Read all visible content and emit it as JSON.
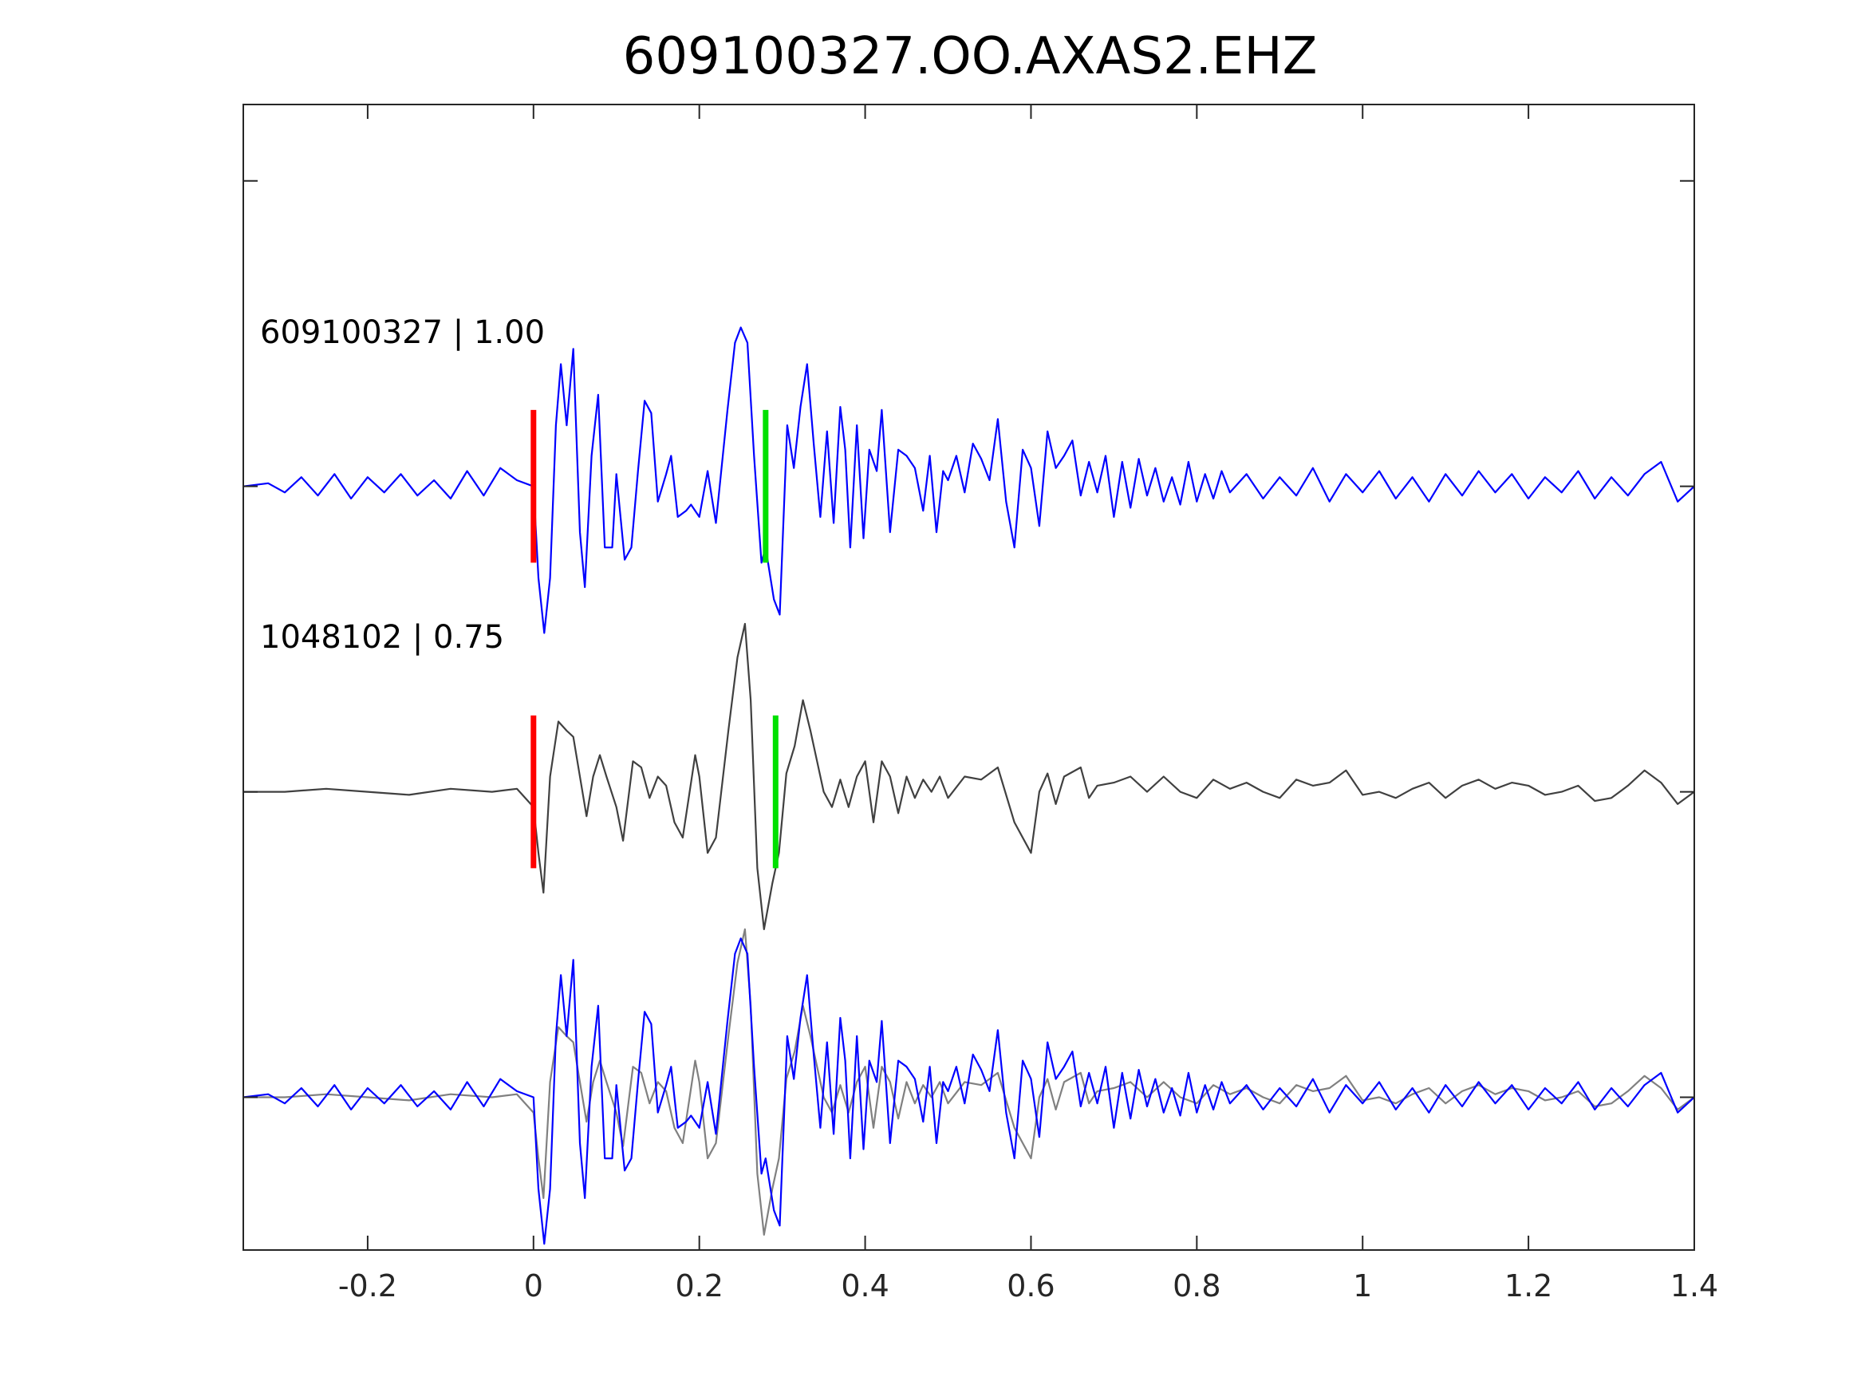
{
  "chart_data": {
    "type": "line",
    "title": "609100327.OO.AXAS2.EHZ",
    "xlabel": "",
    "ylabel": "",
    "xlim": [
      -0.35,
      1.4
    ],
    "xticks": [
      -0.2,
      0,
      0.2,
      0.4,
      0.6,
      0.8,
      1,
      1.2,
      1.4
    ],
    "xtick_labels": [
      "-0.2",
      "0",
      "0.2",
      "0.4",
      "0.6",
      "0.8",
      "1",
      "1.2",
      "1.4"
    ],
    "ylim": [
      -2.5,
      1.25
    ],
    "y_ticks_shown": [
      1,
      0,
      -1,
      -2
    ],
    "y_tick_labels_shown": false,
    "grid": false,
    "legend": "none",
    "traces": [
      {
        "label": "609100327 | 1.00",
        "color": "#0000ff",
        "offset": 0,
        "amplitude_scale": 1,
        "points": [
          [
            -0.35,
            0
          ],
          [
            -0.32,
            0.01
          ],
          [
            -0.3,
            -0.02
          ],
          [
            -0.28,
            0.03
          ],
          [
            -0.26,
            -0.03
          ],
          [
            -0.24,
            0.04
          ],
          [
            -0.22,
            -0.04
          ],
          [
            -0.2,
            0.03
          ],
          [
            -0.18,
            -0.02
          ],
          [
            -0.16,
            0.04
          ],
          [
            -0.14,
            -0.03
          ],
          [
            -0.12,
            0.02
          ],
          [
            -0.1,
            -0.04
          ],
          [
            -0.08,
            0.05
          ],
          [
            -0.06,
            -0.03
          ],
          [
            -0.04,
            0.06
          ],
          [
            -0.02,
            0.02
          ],
          [
            0,
            0
          ],
          [
            0.006,
            -0.3
          ],
          [
            0.013,
            -0.48
          ],
          [
            0.02,
            -0.3
          ],
          [
            0.027,
            0.2
          ],
          [
            0.033,
            0.4
          ],
          [
            0.04,
            0.2
          ],
          [
            0.048,
            0.45
          ],
          [
            0.056,
            -0.15
          ],
          [
            0.062,
            -0.33
          ],
          [
            0.07,
            0.1
          ],
          [
            0.078,
            0.3
          ],
          [
            0.086,
            -0.2
          ],
          [
            0.095,
            -0.2
          ],
          [
            0.1,
            0.04
          ],
          [
            0.11,
            -0.24
          ],
          [
            0.118,
            -0.2
          ],
          [
            0.126,
            0.05
          ],
          [
            0.134,
            0.28
          ],
          [
            0.142,
            0.24
          ],
          [
            0.15,
            -0.05
          ],
          [
            0.16,
            0.04
          ],
          [
            0.166,
            0.1
          ],
          [
            0.174,
            -0.1
          ],
          [
            0.184,
            -0.08
          ],
          [
            0.19,
            -0.06
          ],
          [
            0.2,
            -0.1
          ],
          [
            0.21,
            0.05
          ],
          [
            0.22,
            -0.12
          ],
          [
            0.234,
            0.25
          ],
          [
            0.243,
            0.47
          ],
          [
            0.25,
            0.52
          ],
          [
            0.258,
            0.47
          ],
          [
            0.266,
            0.1
          ],
          [
            0.275,
            -0.25
          ],
          [
            0.28,
            -0.2
          ],
          [
            0.29,
            -0.37
          ],
          [
            0.297,
            -0.42
          ],
          [
            0.306,
            0.2
          ],
          [
            0.314,
            0.06
          ],
          [
            0.322,
            0.26
          ],
          [
            0.33,
            0.4
          ],
          [
            0.338,
            0.14
          ],
          [
            0.346,
            -0.1
          ],
          [
            0.354,
            0.18
          ],
          [
            0.362,
            -0.12
          ],
          [
            0.37,
            0.26
          ],
          [
            0.376,
            0.12
          ],
          [
            0.382,
            -0.2
          ],
          [
            0.39,
            0.2
          ],
          [
            0.398,
            -0.17
          ],
          [
            0.405,
            0.12
          ],
          [
            0.414,
            0.05
          ],
          [
            0.42,
            0.25
          ],
          [
            0.43,
            -0.15
          ],
          [
            0.44,
            0.12
          ],
          [
            0.45,
            0.1
          ],
          [
            0.46,
            0.06
          ],
          [
            0.47,
            -0.08
          ],
          [
            0.478,
            0.1
          ],
          [
            0.486,
            -0.15
          ],
          [
            0.494,
            0.05
          ],
          [
            0.5,
            0.02
          ],
          [
            0.51,
            0.1
          ],
          [
            0.52,
            -0.02
          ],
          [
            0.53,
            0.14
          ],
          [
            0.54,
            0.09
          ],
          [
            0.55,
            0.02
          ],
          [
            0.56,
            0.22
          ],
          [
            0.57,
            -0.05
          ],
          [
            0.58,
            -0.2
          ],
          [
            0.59,
            0.12
          ],
          [
            0.6,
            0.06
          ],
          [
            0.61,
            -0.13
          ],
          [
            0.62,
            0.18
          ],
          [
            0.63,
            0.06
          ],
          [
            0.64,
            0.1
          ],
          [
            0.65,
            0.15
          ],
          [
            0.66,
            -0.03
          ],
          [
            0.67,
            0.08
          ],
          [
            0.68,
            -0.02
          ],
          [
            0.69,
            0.1
          ],
          [
            0.7,
            -0.1
          ],
          [
            0.71,
            0.08
          ],
          [
            0.72,
            -0.07
          ],
          [
            0.73,
            0.09
          ],
          [
            0.74,
            -0.03
          ],
          [
            0.75,
            0.06
          ],
          [
            0.76,
            -0.05
          ],
          [
            0.77,
            0.03
          ],
          [
            0.78,
            -0.06
          ],
          [
            0.79,
            0.08
          ],
          [
            0.8,
            -0.05
          ],
          [
            0.81,
            0.04
          ],
          [
            0.82,
            -0.04
          ],
          [
            0.83,
            0.05
          ],
          [
            0.84,
            -0.02
          ],
          [
            0.86,
            0.04
          ],
          [
            0.88,
            -0.04
          ],
          [
            0.9,
            0.03
          ],
          [
            0.92,
            -0.03
          ],
          [
            0.94,
            0.06
          ],
          [
            0.96,
            -0.05
          ],
          [
            0.98,
            0.04
          ],
          [
            1.0,
            -0.02
          ],
          [
            1.02,
            0.05
          ],
          [
            1.04,
            -0.04
          ],
          [
            1.06,
            0.03
          ],
          [
            1.08,
            -0.05
          ],
          [
            1.1,
            0.04
          ],
          [
            1.12,
            -0.03
          ],
          [
            1.14,
            0.05
          ],
          [
            1.16,
            -0.02
          ],
          [
            1.18,
            0.04
          ],
          [
            1.2,
            -0.04
          ],
          [
            1.22,
            0.03
          ],
          [
            1.24,
            -0.02
          ],
          [
            1.26,
            0.05
          ],
          [
            1.28,
            -0.04
          ],
          [
            1.3,
            0.03
          ],
          [
            1.32,
            -0.03
          ],
          [
            1.34,
            0.04
          ],
          [
            1.36,
            0.08
          ],
          [
            1.38,
            -0.05
          ],
          [
            1.4,
            0
          ]
        ],
        "picks": [
          {
            "color": "#ff0000",
            "x": 0
          },
          {
            "color": "#00e000",
            "x": 0.28
          }
        ]
      },
      {
        "label": "1048102 | 0.75",
        "color": "#404040",
        "offset": -1,
        "amplitude_scale": 1,
        "points": [
          [
            -0.35,
            0
          ],
          [
            -0.3,
            0
          ],
          [
            -0.25,
            0.01
          ],
          [
            -0.2,
            0
          ],
          [
            -0.15,
            -0.01
          ],
          [
            -0.1,
            0.01
          ],
          [
            -0.05,
            0
          ],
          [
            -0.02,
            0.01
          ],
          [
            0,
            -0.05
          ],
          [
            0.006,
            -0.2
          ],
          [
            0.012,
            -0.33
          ],
          [
            0.02,
            0.05
          ],
          [
            0.03,
            0.23
          ],
          [
            0.04,
            0.2
          ],
          [
            0.048,
            0.18
          ],
          [
            0.056,
            0.05
          ],
          [
            0.064,
            -0.08
          ],
          [
            0.072,
            0.05
          ],
          [
            0.08,
            0.12
          ],
          [
            0.088,
            0.05
          ],
          [
            0.1,
            -0.05
          ],
          [
            0.108,
            -0.16
          ],
          [
            0.12,
            0.1
          ],
          [
            0.13,
            0.08
          ],
          [
            0.14,
            -0.02
          ],
          [
            0.15,
            0.05
          ],
          [
            0.16,
            0.02
          ],
          [
            0.17,
            -0.1
          ],
          [
            0.18,
            -0.15
          ],
          [
            0.195,
            0.12
          ],
          [
            0.2,
            0.05
          ],
          [
            0.21,
            -0.2
          ],
          [
            0.22,
            -0.15
          ],
          [
            0.235,
            0.2
          ],
          [
            0.246,
            0.44
          ],
          [
            0.255,
            0.55
          ],
          [
            0.262,
            0.3
          ],
          [
            0.27,
            -0.25
          ],
          [
            0.278,
            -0.45
          ],
          [
            0.288,
            -0.3
          ],
          [
            0.296,
            -0.2
          ],
          [
            0.305,
            0.06
          ],
          [
            0.315,
            0.15
          ],
          [
            0.325,
            0.3
          ],
          [
            0.334,
            0.2
          ],
          [
            0.342,
            0.1
          ],
          [
            0.35,
            0
          ],
          [
            0.36,
            -0.05
          ],
          [
            0.37,
            0.04
          ],
          [
            0.38,
            -0.05
          ],
          [
            0.39,
            0.05
          ],
          [
            0.4,
            0.1
          ],
          [
            0.41,
            -0.1
          ],
          [
            0.42,
            0.1
          ],
          [
            0.43,
            0.05
          ],
          [
            0.44,
            -0.07
          ],
          [
            0.45,
            0.05
          ],
          [
            0.46,
            -0.02
          ],
          [
            0.47,
            0.04
          ],
          [
            0.48,
            0
          ],
          [
            0.49,
            0.05
          ],
          [
            0.5,
            -0.02
          ],
          [
            0.52,
            0.05
          ],
          [
            0.54,
            0.04
          ],
          [
            0.56,
            0.08
          ],
          [
            0.58,
            -0.1
          ],
          [
            0.6,
            -0.2
          ],
          [
            0.61,
            0
          ],
          [
            0.62,
            0.06
          ],
          [
            0.63,
            -0.04
          ],
          [
            0.64,
            0.05
          ],
          [
            0.66,
            0.08
          ],
          [
            0.67,
            -0.02
          ],
          [
            0.68,
            0.02
          ],
          [
            0.7,
            0.03
          ],
          [
            0.72,
            0.05
          ],
          [
            0.74,
            0
          ],
          [
            0.76,
            0.05
          ],
          [
            0.78,
            0
          ],
          [
            0.8,
            -0.02
          ],
          [
            0.82,
            0.04
          ],
          [
            0.84,
            0.01
          ],
          [
            0.86,
            0.03
          ],
          [
            0.88,
            0
          ],
          [
            0.9,
            -0.02
          ],
          [
            0.92,
            0.04
          ],
          [
            0.94,
            0.02
          ],
          [
            0.96,
            0.03
          ],
          [
            0.98,
            0.07
          ],
          [
            1.0,
            -0.01
          ],
          [
            1.02,
            0
          ],
          [
            1.04,
            -0.02
          ],
          [
            1.06,
            0.01
          ],
          [
            1.08,
            0.03
          ],
          [
            1.1,
            -0.02
          ],
          [
            1.12,
            0.02
          ],
          [
            1.14,
            0.04
          ],
          [
            1.16,
            0.01
          ],
          [
            1.18,
            0.03
          ],
          [
            1.2,
            0.02
          ],
          [
            1.22,
            -0.01
          ],
          [
            1.24,
            0
          ],
          [
            1.26,
            0.02
          ],
          [
            1.28,
            -0.03
          ],
          [
            1.3,
            -0.02
          ],
          [
            1.32,
            0.02
          ],
          [
            1.34,
            0.07
          ],
          [
            1.36,
            0.03
          ],
          [
            1.38,
            -0.04
          ],
          [
            1.4,
            0
          ]
        ],
        "picks": [
          {
            "color": "#ff0000",
            "x": 0
          },
          {
            "color": "#00e000",
            "x": 0.292
          }
        ]
      },
      {
        "label": "",
        "offset": -2,
        "note_overlay": true,
        "series_refs": [
          0,
          1
        ],
        "overlay_colors": [
          "#0000ff",
          "#808080"
        ]
      }
    ]
  }
}
